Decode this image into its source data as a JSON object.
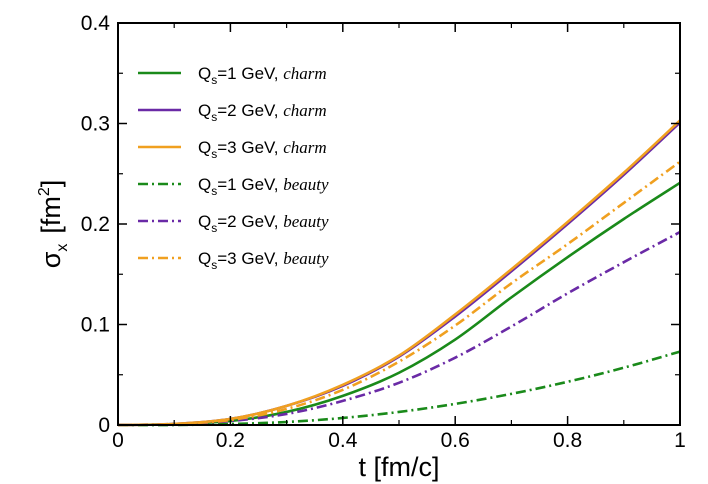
{
  "chart_data": {
    "type": "line",
    "xlabel": "t  [fm/c]",
    "ylabel": "σx  [fm2]",
    "ylabel_parts": {
      "sym": "σ",
      "sub": "x",
      "unit_open": "[fm",
      "sup": "2",
      "unit_close": "]"
    },
    "xlim": [
      0,
      1
    ],
    "ylim": [
      0,
      0.4
    ],
    "xticks": [
      {
        "value": 0,
        "label": "0"
      },
      {
        "value": 0.2,
        "label": "0.2"
      },
      {
        "value": 0.4,
        "label": "0.4"
      },
      {
        "value": 0.6,
        "label": "0.6"
      },
      {
        "value": 0.8,
        "label": "0.8"
      },
      {
        "value": 1,
        "label": "1"
      }
    ],
    "yticks": [
      {
        "value": 0,
        "label": "0"
      },
      {
        "value": 0.1,
        "label": "0.1"
      },
      {
        "value": 0.2,
        "label": "0.2"
      },
      {
        "value": 0.3,
        "label": "0.3"
      },
      {
        "value": 0.4,
        "label": "0.4"
      }
    ],
    "legend_position": "top-left",
    "grid": false,
    "x": [
      0,
      0.1,
      0.2,
      0.3,
      0.4,
      0.5,
      0.6,
      0.7,
      0.8,
      0.9,
      1.0
    ],
    "series": [
      {
        "name_main": "Q",
        "name_sub": "s",
        "name_rest": "=1 GeV, ",
        "name_ital": "charm",
        "color": "#1a8a1a",
        "dash": "solid",
        "values": [
          0,
          0.001,
          0.004,
          0.013,
          0.029,
          0.052,
          0.085,
          0.127,
          0.167,
          0.205,
          0.241
        ]
      },
      {
        "name_main": "Q",
        "name_sub": "s",
        "name_rest": "=2 GeV, ",
        "name_ital": "charm",
        "color": "#6a2aa6",
        "dash": "solid",
        "values": [
          0,
          0.001,
          0.006,
          0.019,
          0.039,
          0.068,
          0.108,
          0.153,
          0.2,
          0.249,
          0.301
        ]
      },
      {
        "name_main": "Q",
        "name_sub": "s",
        "name_rest": "=3 GeV, ",
        "name_ital": "charm",
        "color": "#f0a020",
        "dash": "solid",
        "values": [
          0,
          0.001,
          0.006,
          0.019,
          0.04,
          0.069,
          0.11,
          0.155,
          0.202,
          0.251,
          0.303
        ]
      },
      {
        "name_main": "Q",
        "name_sub": "s",
        "name_rest": "=1 GeV, ",
        "name_ital": "beauty",
        "color": "#1a8a1a",
        "dash": "dashdot",
        "values": [
          0,
          0.0,
          0.001,
          0.003,
          0.007,
          0.013,
          0.021,
          0.031,
          0.043,
          0.057,
          0.073
        ]
      },
      {
        "name_main": "Q",
        "name_sub": "s",
        "name_rest": "=2 GeV, ",
        "name_ital": "beauty",
        "color": "#6a2aa6",
        "dash": "dashdot",
        "values": [
          0,
          0.001,
          0.004,
          0.011,
          0.024,
          0.042,
          0.067,
          0.098,
          0.131,
          0.162,
          0.192
        ]
      },
      {
        "name_main": "Q",
        "name_sub": "s",
        "name_rest": "=3 GeV, ",
        "name_ital": "beauty",
        "color": "#f0a020",
        "dash": "dashdot",
        "values": [
          0,
          0.001,
          0.005,
          0.016,
          0.035,
          0.063,
          0.099,
          0.141,
          0.18,
          0.221,
          0.262
        ]
      }
    ]
  }
}
